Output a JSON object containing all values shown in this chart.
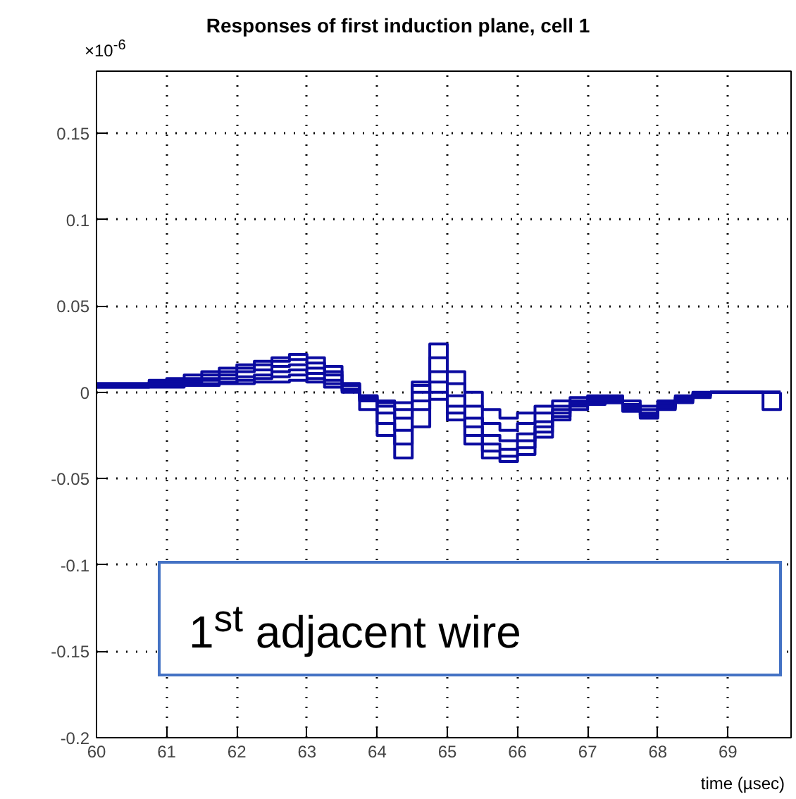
{
  "chart_data": {
    "type": "step",
    "title": "Responses of first induction plane, cell 1",
    "xlabel": "time (µsec)",
    "annotations": [
      "×10$^{-6}$",
      "1$^{st}$  adjacent wire"
    ],
    "x": [
      60,
      60.25,
      60.5,
      60.75,
      61,
      61.25,
      61.5,
      61.75,
      62,
      62.25,
      62.5,
      62.75,
      63,
      63.25,
      63.5,
      63.75,
      64,
      64.25,
      64.5,
      64.75,
      65,
      65.25,
      65.5,
      65.75,
      66,
      66.25,
      66.5,
      66.75,
      67,
      67.25,
      67.5,
      67.75,
      68,
      68.25,
      68.5,
      68.75,
      69,
      69.25,
      69.5,
      69.75
    ],
    "series": [
      {
        "color": "#0b0ba0",
        "values": [
          0.005,
          0.005,
          0.005,
          0.007,
          0.008,
          0.01,
          0.012,
          0.014,
          0.016,
          0.018,
          0.02,
          0.022,
          0.02,
          0.015,
          0.005,
          -0.01,
          -0.025,
          -0.038,
          -0.02,
          0.028,
          0.012,
          0.0,
          -0.01,
          -0.015,
          -0.012,
          -0.008,
          -0.005,
          -0.003,
          -0.002,
          -0.002,
          -0.005,
          -0.008,
          -0.005,
          -0.002,
          0,
          0,
          0,
          0,
          -0.01,
          0
        ]
      },
      {
        "color": "#0b0ba0",
        "values": [
          0.005,
          0.005,
          0.005,
          0.006,
          0.007,
          0.008,
          0.01,
          0.012,
          0.014,
          0.016,
          0.018,
          0.019,
          0.017,
          0.012,
          0.005,
          -0.005,
          -0.018,
          -0.03,
          -0.01,
          0.02,
          0.005,
          -0.008,
          -0.018,
          -0.022,
          -0.018,
          -0.012,
          -0.008,
          -0.005,
          -0.003,
          -0.003,
          -0.007,
          -0.01,
          -0.006,
          -0.003,
          -0.001,
          0,
          0,
          0,
          0,
          0
        ]
      },
      {
        "color": "#0b0ba0",
        "values": [
          0.004,
          0.004,
          0.004,
          0.005,
          0.006,
          0.007,
          0.008,
          0.01,
          0.012,
          0.013,
          0.015,
          0.016,
          0.014,
          0.01,
          0.004,
          -0.002,
          -0.012,
          -0.022,
          -0.005,
          0.012,
          -0.002,
          -0.015,
          -0.025,
          -0.028,
          -0.024,
          -0.017,
          -0.01,
          -0.006,
          -0.004,
          -0.004,
          -0.008,
          -0.012,
          -0.007,
          -0.003,
          -0.001,
          0,
          0,
          0,
          0,
          0
        ]
      },
      {
        "color": "#0b0ba0",
        "values": [
          0.004,
          0.004,
          0.004,
          0.004,
          0.005,
          0.006,
          0.007,
          0.008,
          0.009,
          0.01,
          0.012,
          0.013,
          0.011,
          0.007,
          0.002,
          -0.002,
          -0.008,
          -0.015,
          0.0,
          0.006,
          -0.008,
          -0.02,
          -0.03,
          -0.033,
          -0.028,
          -0.02,
          -0.012,
          -0.007,
          -0.005,
          -0.005,
          -0.009,
          -0.013,
          -0.008,
          -0.004,
          -0.002,
          0,
          0,
          0,
          0,
          0
        ]
      },
      {
        "color": "#0b0ba0",
        "values": [
          0.003,
          0.003,
          0.003,
          0.004,
          0.004,
          0.005,
          0.005,
          0.006,
          0.007,
          0.008,
          0.009,
          0.01,
          0.008,
          0.005,
          0.001,
          -0.003,
          -0.006,
          -0.01,
          0.004,
          0.0,
          -0.012,
          -0.025,
          -0.034,
          -0.037,
          -0.032,
          -0.023,
          -0.014,
          -0.008,
          -0.006,
          -0.006,
          -0.01,
          -0.014,
          -0.009,
          -0.005,
          -0.002,
          0,
          0,
          0,
          0,
          0
        ]
      },
      {
        "color": "#0b0ba0",
        "values": [
          0.003,
          0.003,
          0.003,
          0.003,
          0.003,
          0.004,
          0.004,
          0.005,
          0.005,
          0.006,
          0.006,
          0.007,
          0.006,
          0.003,
          0.0,
          -0.004,
          -0.005,
          -0.006,
          0.006,
          -0.004,
          -0.016,
          -0.03,
          -0.038,
          -0.04,
          -0.036,
          -0.026,
          -0.016,
          -0.01,
          -0.007,
          -0.006,
          -0.011,
          -0.015,
          -0.01,
          -0.006,
          -0.003,
          0,
          0,
          0,
          0,
          0
        ]
      }
    ],
    "xlim": [
      60,
      69.9
    ],
    "ylim": [
      -0.2,
      0.186
    ],
    "xticks": [
      60,
      61,
      62,
      63,
      64,
      65,
      66,
      67,
      68,
      69
    ],
    "yticks": [
      -0.2,
      -0.15,
      -0.1,
      -0.05,
      0,
      0.05,
      0.1,
      0.15
    ],
    "grid": true,
    "marker": "none",
    "line_style": "solid"
  }
}
